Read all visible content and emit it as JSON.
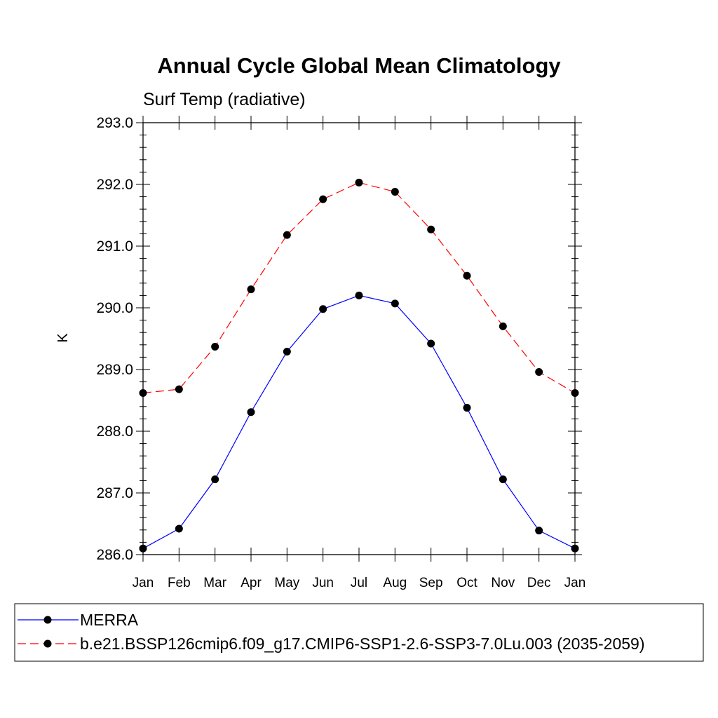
{
  "chart_data": {
    "type": "line",
    "title": "Annual Cycle Global Mean Climatology",
    "subtitle": "Surf Temp (radiative)",
    "ylabel": "K",
    "xlabel": "",
    "categories": [
      "Jan",
      "Feb",
      "Mar",
      "Apr",
      "May",
      "Jun",
      "Jul",
      "Aug",
      "Sep",
      "Oct",
      "Nov",
      "Dec",
      "Jan"
    ],
    "ylim": [
      286.0,
      293.0
    ],
    "yticks": [
      "286.0",
      "287.0",
      "288.0",
      "289.0",
      "290.0",
      "291.0",
      "292.0",
      "293.0"
    ],
    "grid": false,
    "legend_position": "bottom",
    "series": [
      {
        "name": "MERRA",
        "color": "#0000ff",
        "line_style": "solid",
        "marker": "filled-circle",
        "values": [
          286.1,
          286.42,
          287.22,
          288.31,
          289.29,
          289.98,
          290.2,
          290.07,
          289.42,
          288.38,
          287.22,
          286.39,
          286.1
        ]
      },
      {
        "name": "b.e21.BSSP126cmip6.f09_g17.CMIP6-SSP1-2.6-SSP3-7.0Lu.003 (2035-2059)",
        "color": "#ff0000",
        "line_style": "dashed",
        "marker": "filled-circle",
        "values": [
          288.62,
          288.68,
          289.37,
          290.3,
          291.18,
          291.76,
          292.03,
          291.88,
          291.27,
          290.52,
          289.7,
          288.96,
          288.62
        ]
      }
    ]
  }
}
